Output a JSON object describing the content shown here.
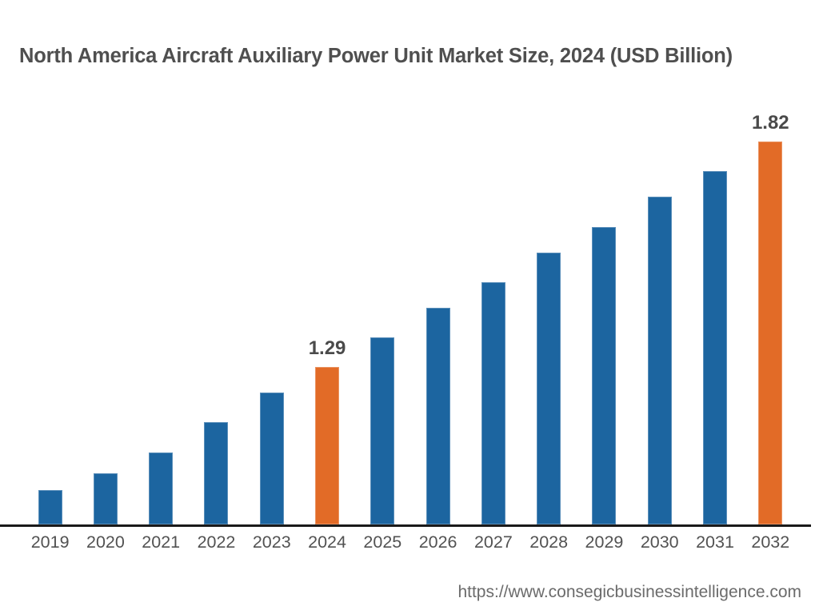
{
  "page": {
    "source_url": "https://www.consegicbusinessintelligence.com"
  },
  "colors": {
    "bar_default": "#1c65a0",
    "bar_highlight": "#e26b27",
    "title_text": "#4f4f4f",
    "axis_label": "#525252",
    "data_label": "#4a4a4a",
    "source_text": "#6b6b6b",
    "axis_line": "#1a1a1a",
    "background": "#ffffff"
  },
  "chart_data": {
    "type": "bar",
    "title": "North America Aircraft Auxiliary Power Unit Market Size, 2024 (USD Billion)",
    "unit": "USD Billion",
    "categories": [
      "2019",
      "2020",
      "2021",
      "2022",
      "2023",
      "2024",
      "2025",
      "2026",
      "2027",
      "2028",
      "2029",
      "2030",
      "2031",
      "2032"
    ],
    "values": [
      1.0,
      1.04,
      1.09,
      1.16,
      1.23,
      1.29,
      1.36,
      1.43,
      1.49,
      1.56,
      1.62,
      1.69,
      1.75,
      1.82
    ],
    "data_labels": {
      "2024": "1.29",
      "2032": "1.82"
    },
    "highlighted_categories": [
      "2024",
      "2032"
    ],
    "xlabel": "",
    "ylabel": "",
    "ylim": [
      0.92,
      1.9
    ],
    "grid": false,
    "legend": false
  }
}
